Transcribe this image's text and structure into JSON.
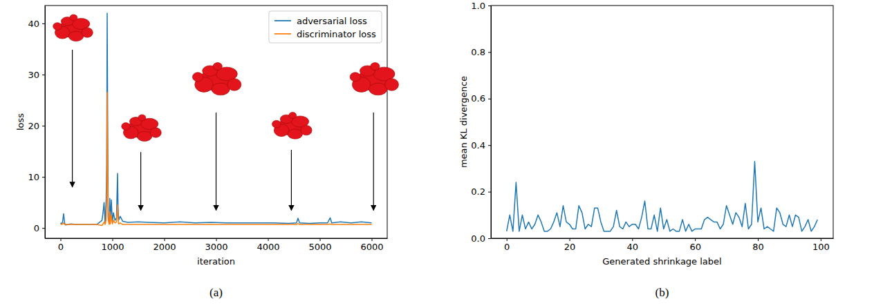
{
  "chart_data": [
    {
      "type": "line",
      "caption": "(a)",
      "xlabel": "iteration",
      "ylabel": "loss",
      "x": [
        0,
        20,
        40,
        60,
        80,
        100,
        150,
        200,
        300,
        400,
        500,
        600,
        700,
        800,
        820,
        840,
        860,
        880,
        890,
        900,
        910,
        920,
        940,
        950,
        960,
        980,
        1000,
        1020,
        1050,
        1080,
        1100,
        1110,
        1120,
        1150,
        1200,
        1300,
        1500,
        1700,
        2000,
        2300,
        2600,
        2900,
        3200,
        3500,
        3800,
        4100,
        4400,
        4550,
        4580,
        4610,
        4800,
        5000,
        5150,
        5200,
        5230,
        5400,
        5600,
        5800,
        6000
      ],
      "xlim": [
        -300,
        6300
      ],
      "xticks": [
        0,
        1000,
        2000,
        3000,
        4000,
        5000,
        6000
      ],
      "ylim": [
        -2,
        43.5
      ],
      "yticks": [
        0,
        10,
        20,
        30,
        40
      ],
      "grid": false,
      "legend": "upper right",
      "series": [
        {
          "name": "adversarial loss",
          "color": "#1f77b4",
          "values": [
            1.0,
            0.8,
            1.2,
            2.8,
            0.9,
            0.6,
            0.7,
            0.8,
            0.7,
            0.7,
            0.7,
            0.7,
            0.7,
            1.5,
            3.0,
            5.0,
            1.0,
            5.5,
            12,
            42,
            20,
            2,
            1,
            5.8,
            1.5,
            5.5,
            1,
            3,
            1.5,
            2,
            10.7,
            4,
            1.5,
            2.3,
            1.3,
            1.1,
            1.2,
            1.1,
            1.0,
            1.2,
            1.0,
            1.1,
            1.0,
            1.0,
            1.0,
            1.0,
            0.9,
            1.0,
            1.9,
            1.0,
            0.9,
            1.0,
            1.0,
            2.0,
            1.0,
            1.2,
            1.0,
            1.2,
            1.0
          ]
        },
        {
          "name": "discriminator loss",
          "color": "#ff7f0e",
          "values": [
            0.8,
            0.7,
            0.8,
            1.0,
            0.7,
            0.7,
            0.7,
            0.7,
            0.7,
            0.7,
            0.7,
            0.7,
            0.7,
            0.5,
            0.8,
            1.2,
            0.7,
            1.5,
            5,
            26.5,
            10,
            1.5,
            0.7,
            3.2,
            0.8,
            2.5,
            0.8,
            1.5,
            1.0,
            1.2,
            4.5,
            2,
            0.8,
            1.0,
            0.7,
            0.7,
            0.7,
            0.7,
            0.7,
            0.7,
            0.7,
            0.7,
            0.7,
            0.7,
            0.7,
            0.7,
            0.7,
            0.7,
            0.9,
            0.7,
            0.7,
            0.7,
            0.7,
            0.8,
            0.7,
            0.7,
            0.7,
            0.7,
            0.7
          ]
        }
      ]
    },
    {
      "type": "line",
      "caption": "(b)",
      "xlabel": "Generated shrinkage label",
      "ylabel": "mean KL divergence",
      "x": [
        0,
        1,
        2,
        3,
        4,
        5,
        6,
        7,
        8,
        9,
        10,
        11,
        12,
        13,
        14,
        15,
        16,
        17,
        18,
        19,
        20,
        21,
        22,
        23,
        24,
        25,
        26,
        27,
        28,
        29,
        30,
        31,
        32,
        33,
        34,
        35,
        36,
        37,
        38,
        39,
        40,
        41,
        42,
        43,
        44,
        45,
        46,
        47,
        48,
        49,
        50,
        51,
        52,
        53,
        54,
        55,
        56,
        57,
        58,
        59,
        60,
        61,
        62,
        63,
        64,
        65,
        66,
        67,
        68,
        69,
        70,
        71,
        72,
        73,
        74,
        75,
        76,
        77,
        78,
        79,
        80,
        81,
        82,
        83,
        84,
        85,
        86,
        87,
        88,
        89,
        90,
        91,
        92,
        93,
        94,
        95,
        96,
        97,
        98,
        99
      ],
      "xlim": [
        -5,
        104
      ],
      "xticks": [
        0,
        20,
        40,
        60,
        80,
        100
      ],
      "ylim": [
        0,
        1
      ],
      "yticks": [
        {
          "value": 0,
          "label": "0.0"
        },
        {
          "value": 0.2,
          "label": "0.2"
        },
        {
          "value": 0.4,
          "label": "0.4"
        },
        {
          "value": 0.6,
          "label": "0.6"
        },
        {
          "value": 0.8,
          "label": "0.8"
        },
        {
          "value": 1,
          "label": "1.0"
        }
      ],
      "grid": false,
      "series": [
        {
          "color": "#1f77b4",
          "values": [
            0.03,
            0.1,
            0.03,
            0.24,
            0.03,
            0.1,
            0.04,
            0.07,
            0.04,
            0.06,
            0.1,
            0.07,
            0.03,
            0.03,
            0.04,
            0.07,
            0.11,
            0.05,
            0.14,
            0.07,
            0.06,
            0.04,
            0.04,
            0.14,
            0.11,
            0.04,
            0.06,
            0.05,
            0.13,
            0.13,
            0.07,
            0.03,
            0.03,
            0.03,
            0.05,
            0.12,
            0.05,
            0.04,
            0.07,
            0.05,
            0.06,
            0.06,
            0.04,
            0.09,
            0.16,
            0.04,
            0.04,
            0.1,
            0.03,
            0.13,
            0.04,
            0.08,
            0.03,
            0.04,
            0.03,
            0.03,
            0.08,
            0.03,
            0.06,
            0.03,
            0.04,
            0.04,
            0.04,
            0.08,
            0.09,
            0.08,
            0.07,
            0.07,
            0.04,
            0.06,
            0.14,
            0.1,
            0.06,
            0.11,
            0.09,
            0.05,
            0.15,
            0.04,
            0.06,
            0.33,
            0.07,
            0.13,
            0.04,
            0.05,
            0.04,
            0.03,
            0.13,
            0.11,
            0.06,
            0.05,
            0.1,
            0.05,
            0.1,
            0.09,
            0.03,
            0.05,
            0.08,
            0.03,
            0.05,
            0.08
          ]
        }
      ]
    }
  ]
}
